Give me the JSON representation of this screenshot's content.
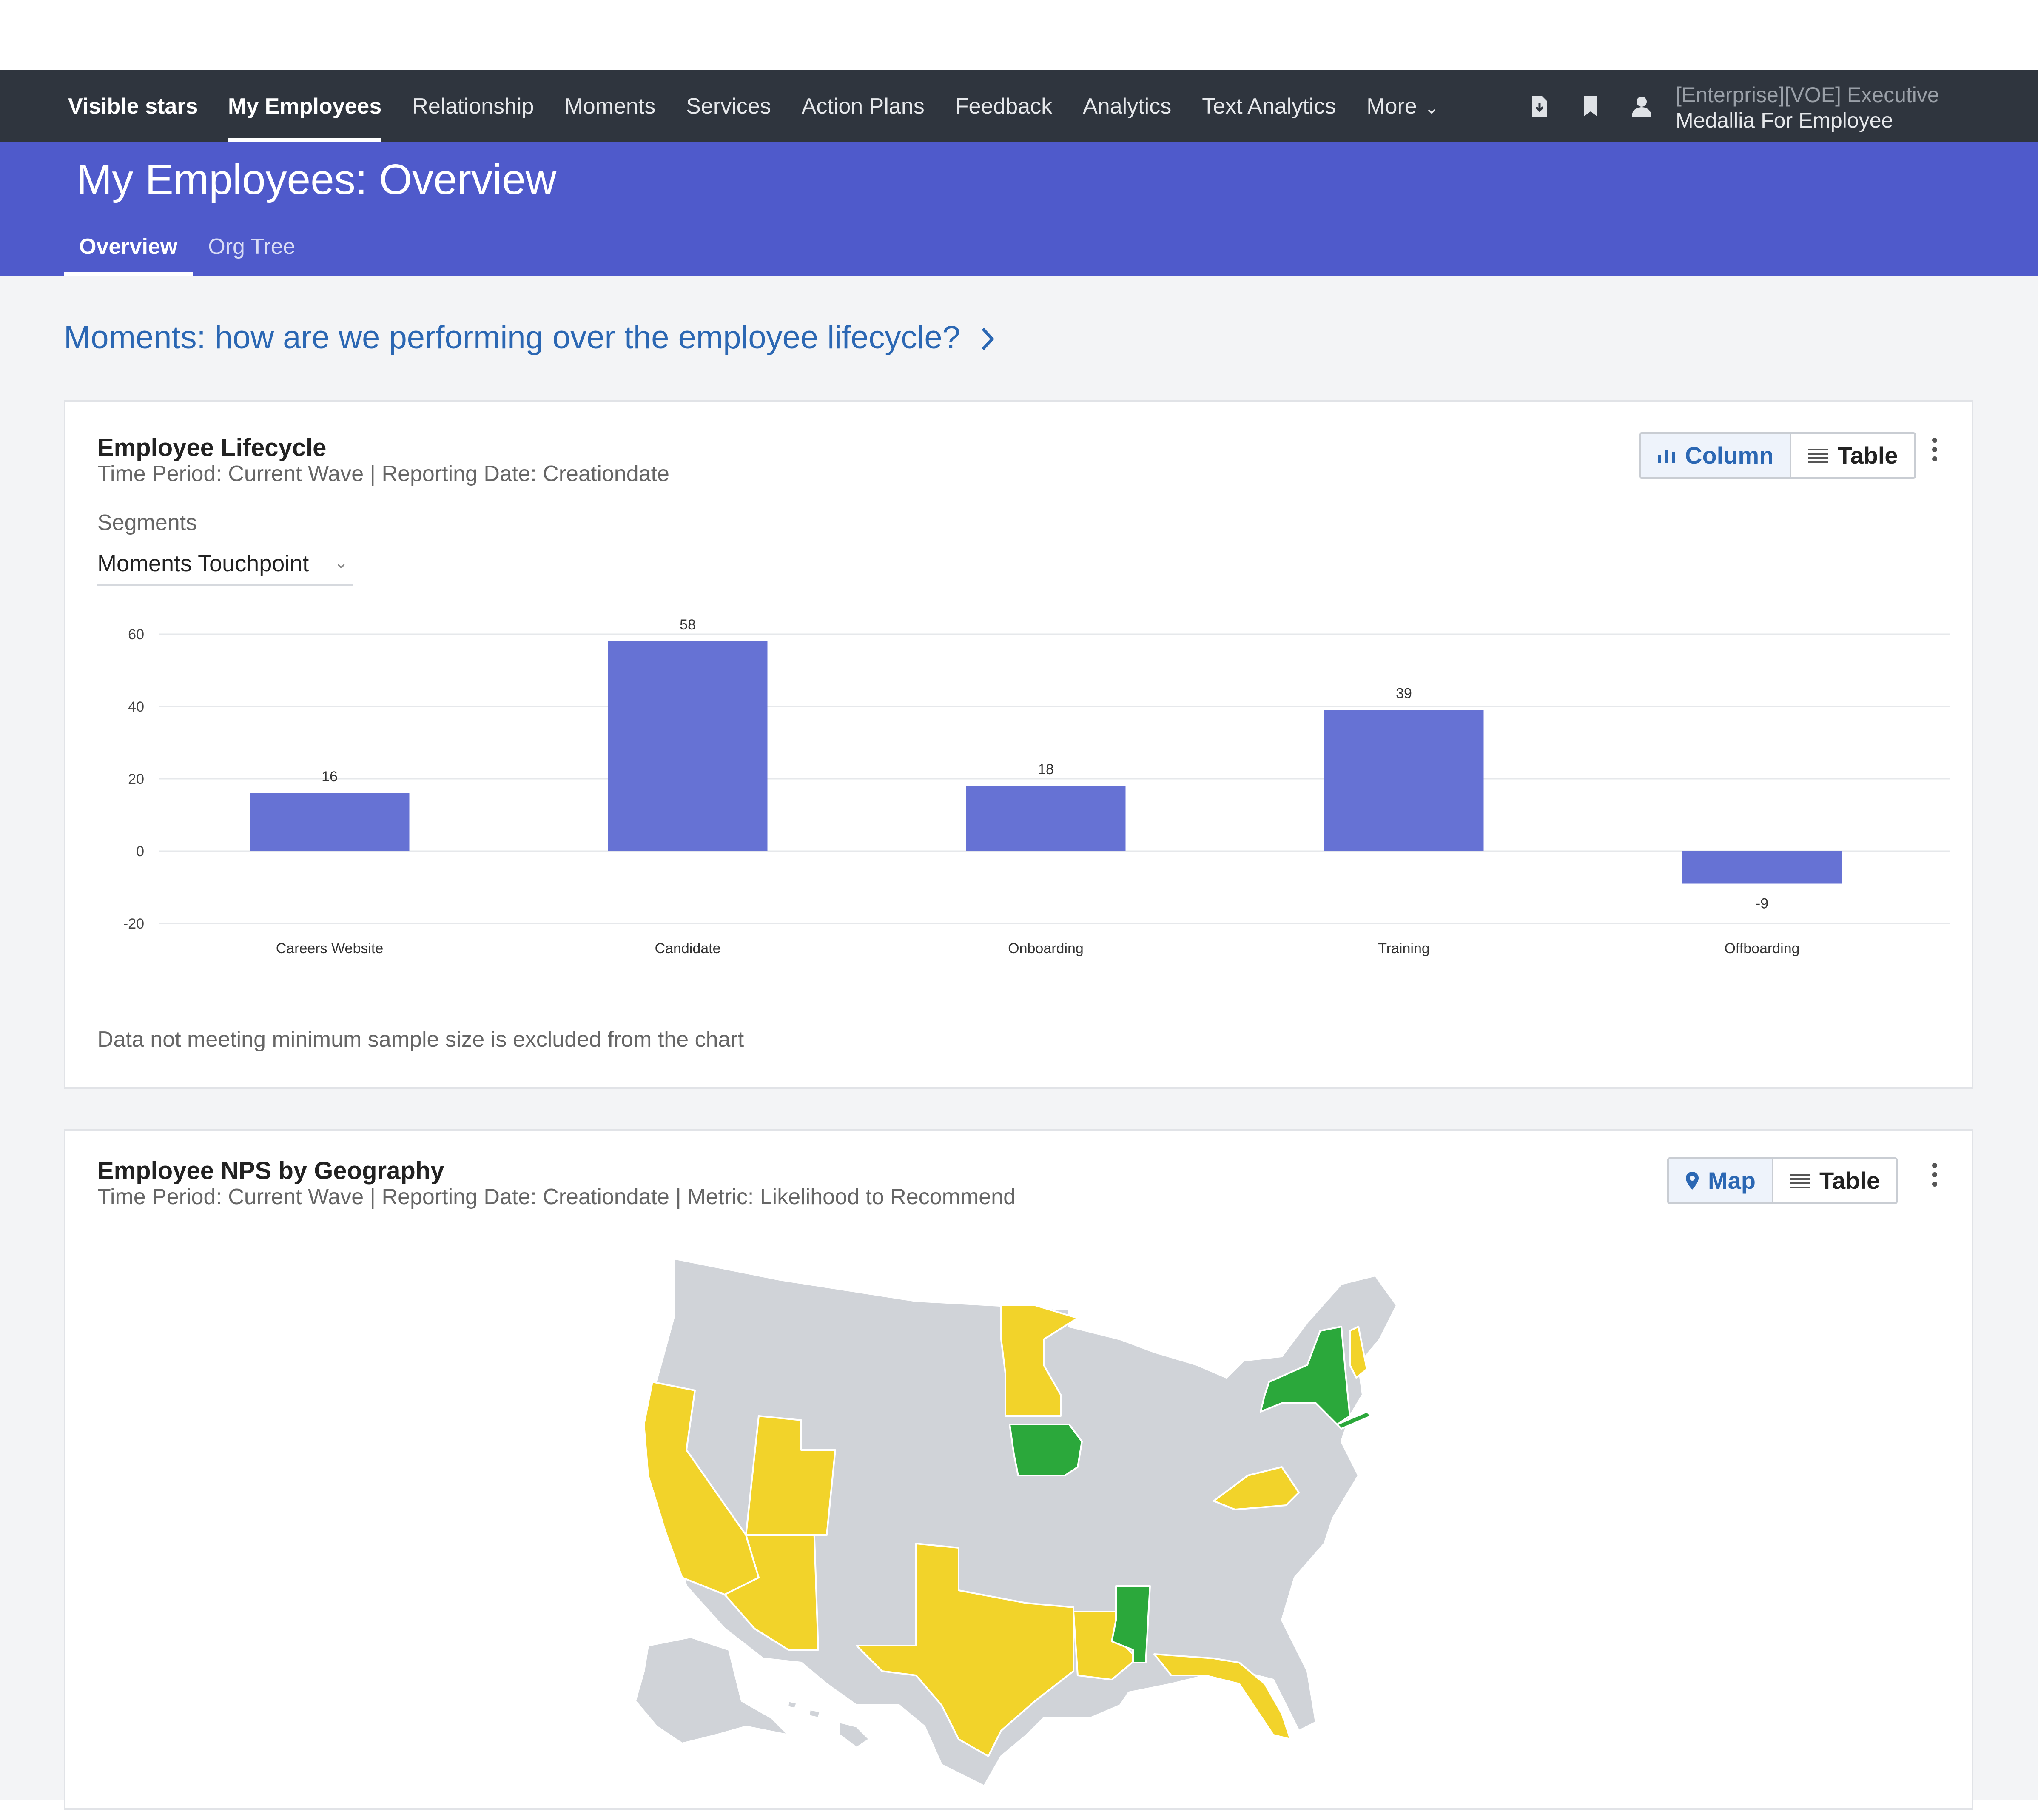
{
  "navbar": {
    "brand": "Visible stars",
    "items": [
      "My Employees",
      "Relationship",
      "Moments",
      "Services",
      "Action Plans",
      "Feedback",
      "Analytics",
      "Text Analytics",
      "More"
    ],
    "active_index": 0,
    "user_line1": "[Enterprise][VOE] Executive",
    "user_line2": "Medallia For Employee"
  },
  "header": {
    "title": "My Employees: Overview",
    "tabs": [
      "Overview",
      "Org Tree"
    ]
  },
  "section_link": "Moments: how are we performing over the employee lifecycle?",
  "lifecycle_card": {
    "title": "Employee Lifecycle",
    "subtitle": "Time Period: Current Wave | Reporting Date: Creationdate",
    "toggle_column": "Column",
    "toggle_table": "Table",
    "segments_label": "Segments",
    "segments_value": "Moments Touchpoint",
    "note": "Data not meeting minimum sample size is excluded from the chart"
  },
  "geo_card": {
    "title": "Employee NPS by Geography",
    "subtitle": "Time Period: Current Wave | Reporting Date: Creationdate | Metric: Likelihood to Recommend",
    "toggle_map": "Map",
    "toggle_table": "Table"
  },
  "colors": {
    "navbar": "#2f353e",
    "header": "#4f5acb",
    "bar": "#6672d4",
    "link": "#2b67b3",
    "map_gray": "#d0d3d8",
    "map_yellow": "#f2d32a",
    "map_green": "#2ba83b"
  },
  "chart_data": {
    "type": "bar",
    "categories": [
      "Careers Website",
      "Candidate",
      "Onboarding",
      "Training",
      "Offboarding"
    ],
    "values": [
      16,
      58,
      18,
      39,
      -9
    ],
    "yticks": [
      60,
      40,
      20,
      0,
      -20
    ],
    "ylim": [
      -20,
      60
    ],
    "title": "",
    "xlabel": "",
    "ylabel": "",
    "grid": true
  }
}
